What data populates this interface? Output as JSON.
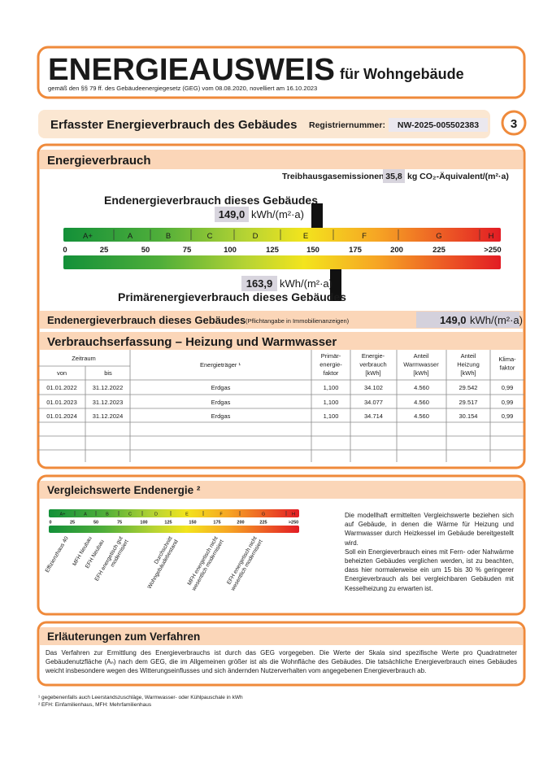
{
  "header": {
    "title": "ENERGIEAUSWEIS",
    "title_suffix": "für Wohngebäude",
    "legal": "gemäß den §§ 79 ff. des Gebäudeenergiegesetz (GEG) vom 08.08.2020, novelliert am 16.10.2023"
  },
  "section_bar": {
    "title": "Erfasster Energieverbrauch des Gebäudes",
    "registration_label": "Registriernummer:",
    "registration_number": "NW-2025-005502383",
    "page_number": "3"
  },
  "energy": {
    "title": "Energieverbrauch",
    "ghg_label": "Treibhausgasemissionen",
    "ghg_value": "35,8",
    "ghg_unit": "kg CO₂-Äquivalent/(m²·a)",
    "final_label": "Endenergieverbrauch dieses Gebäudes",
    "final_value": "149,0",
    "unit": "kWh/(m²·a)",
    "primary_value": "163,9",
    "primary_label": "Primärenergieverbrauch dieses Gebäudes",
    "classes": [
      "A+",
      "A",
      "B",
      "C",
      "D",
      "E",
      "F",
      "G",
      "H"
    ],
    "ticks": [
      "0",
      "25",
      "50",
      "75",
      "100",
      "125",
      "150",
      "175",
      "200",
      "225",
      ">250"
    ]
  },
  "summary": {
    "label": "Endenergieverbrauch dieses Gebäudes",
    "note": "(Pflichtangabe in Immobilienanzeigen)",
    "value": "149,0",
    "unit": "kWh/(m²·a)"
  },
  "consumption": {
    "title": "Verbrauchserfassung – Heizung und Warmwasser",
    "headers": {
      "period": "Zeitraum",
      "from": "von",
      "to": "bis",
      "carrier": "Energieträger ¹",
      "primary_factor": [
        "Primär-",
        "energie-",
        "faktor"
      ],
      "consumption": [
        "Energie-",
        "verbrauch",
        "[kWh]"
      ],
      "hot_water": [
        "Anteil",
        "Warmwasser",
        "[kWh]"
      ],
      "heating": [
        "Anteil",
        "Heizung",
        "[kWh]"
      ],
      "climate_factor": [
        "Klima-",
        "faktor"
      ]
    },
    "rows": [
      [
        "01.01.2022",
        "31.12.2022",
        "Erdgas",
        "1,100",
        "34.102",
        "4.560",
        "29.542",
        "0,99"
      ],
      [
        "01.01.2023",
        "31.12.2023",
        "Erdgas",
        "1,100",
        "34.077",
        "4.560",
        "29.517",
        "0,99"
      ],
      [
        "01.01.2024",
        "31.12.2024",
        "Erdgas",
        "1,100",
        "34.714",
        "4.560",
        "30.154",
        "0,99"
      ]
    ]
  },
  "comparison": {
    "title": "Vergleichswerte Endenergie ²",
    "labels": [
      [
        "Effizienzhaus 40"
      ],
      [
        "MFH Neubau"
      ],
      [
        "EFH Neubau"
      ],
      [
        "EFH energetisch gut",
        "modernisiert"
      ],
      [
        "Durchschnitt",
        "Wohngebäudebestand"
      ],
      [
        "MFH energetisch nicht",
        "wesentlich modernisiert"
      ],
      [
        "EFH energetisch nicht",
        "wesentlich modernisiert"
      ]
    ],
    "paragraphs": [
      "Die modellhaft ermittelten Vergleichswerte beziehen sich auf Gebäude, in denen die Wärme für Heizung und Warmwasser durch Heizkessel im Gebäude bereitgestellt wird.",
      "Soll ein Energieverbrauch eines mit Fern- oder Nahwärme beheizten Gebäudes verglichen werden, ist zu beachten, dass hier normalerweise ein um 15 bis 30 % geringerer Energieverbrauch als bei vergleichbaren Gebäuden mit Kesselheizung zu erwarten ist."
    ]
  },
  "explanation": {
    "title": "Erläuterungen zum Verfahren",
    "text": "Das Verfahren zur Ermittlung des Energieverbrauchs ist durch das GEG vorgegeben. Die Werte der Skala sind spezifische Werte pro Quadratmeter Gebäudenutzfläche (Aₙ) nach dem GEG, die im Allgemeinen größer ist als die Wohnfläche des Gebäudes. Die tatsächliche Energieverbrauch eines Gebäudes weicht insbesondere wegen des Witterungseinflusses und sich ändernden Nutzerverhalten vom angegebenen Energieverbrauch ab."
  },
  "footnotes": [
    "¹ gegebenenfalls auch Leerstandszuschläge, Warmwasser- oder Kühlpauschale in kWh",
    "² EFH: Einfamilienhaus, MFH: Mehrfamilienhaus"
  ]
}
